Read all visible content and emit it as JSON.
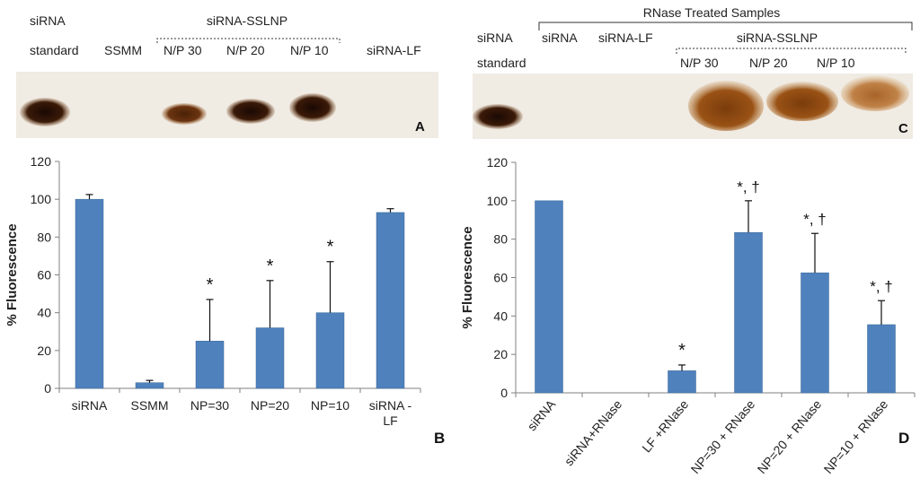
{
  "colors": {
    "bar": "#4f81bd",
    "bar_edge": "#3a6796",
    "axis": "#808080",
    "blot_bg": "#f1ede6",
    "band_dark": "#2a1408",
    "band_mid": "#6b3a12",
    "band_brown": "#8a4a15",
    "band_light": "#b87a3a"
  },
  "panel_a": {
    "letter": "A",
    "header_top": [
      "siRNA",
      "siRNA-SSLNP"
    ],
    "lanes": [
      "standard",
      "SSMM",
      "N/P 30",
      "N/P 20",
      "N/P 10",
      "siRNA-LF"
    ]
  },
  "panel_c": {
    "letter": "C",
    "bracket_title": "RNase Treated Samples",
    "header_row1": [
      "siRNA",
      "siRNA",
      "siRNA-LF",
      "siRNA-SSLNP"
    ],
    "header_row2": [
      "standard",
      "N/P 30",
      "N/P 20",
      "N/P 10"
    ]
  },
  "chart_data": [
    {
      "type": "bar",
      "panel": "B",
      "ylabel": "% Fluorescence",
      "ylim": [
        0,
        120
      ],
      "yticks": [
        0,
        20,
        40,
        60,
        80,
        100,
        120
      ],
      "categories": [
        "siRNA",
        "SSMM",
        "NP=30",
        "NP=20",
        "NP=10",
        "siRNA - LF"
      ],
      "values": [
        100,
        3,
        25,
        32,
        40,
        93
      ],
      "error": [
        2.5,
        1.2,
        22,
        25,
        27,
        2
      ],
      "annotations": [
        "",
        "",
        "*",
        "*",
        "*",
        ""
      ]
    },
    {
      "type": "bar",
      "panel": "D",
      "ylabel": "% Fluorescence",
      "ylim": [
        0,
        120
      ],
      "yticks": [
        0,
        20,
        40,
        60,
        80,
        100,
        120
      ],
      "categories": [
        "siRNA",
        "siRNA+RNase",
        "LF +RNase",
        "NP=30 + RNase",
        "NP=20 + RNase",
        "NP=10 + RNase"
      ],
      "values": [
        100,
        0,
        11.5,
        83.5,
        62.5,
        35.5
      ],
      "error": [
        0,
        0,
        3,
        16.5,
        20.5,
        12.5
      ],
      "annotations": [
        "",
        "",
        "*",
        "*, †",
        "*, †",
        "*, †"
      ]
    }
  ]
}
